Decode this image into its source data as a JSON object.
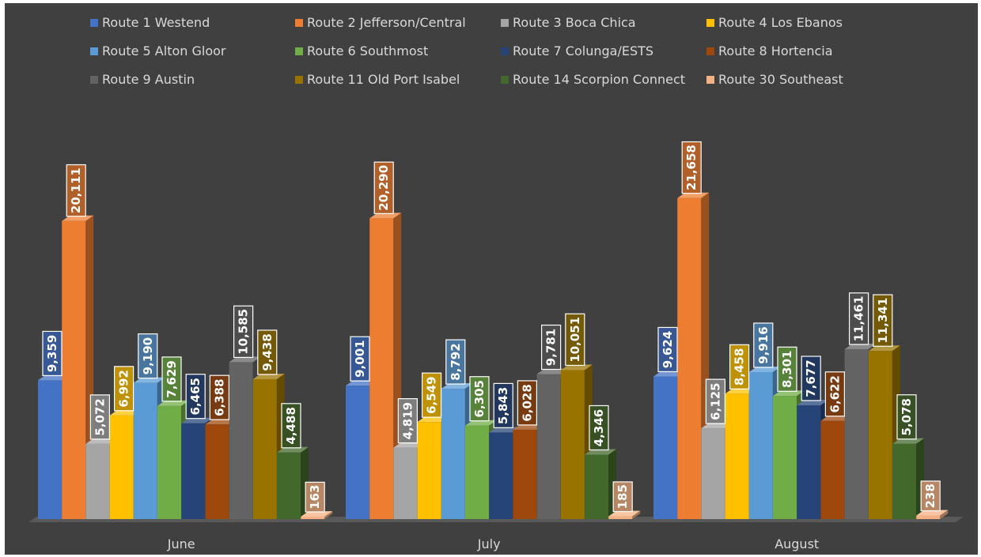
{
  "chart_data": {
    "type": "bar",
    "title": "",
    "xlabel": "",
    "ylabel": "",
    "categories": [
      "June",
      "July",
      "August"
    ],
    "legend_position": "top",
    "grid": false,
    "ylim": [
      0,
      22000
    ],
    "series": [
      {
        "name": "Route 1 Westend",
        "color": "#4472C4",
        "values": [
          9359,
          9001,
          9624
        ]
      },
      {
        "name": "Route 2 Jefferson/Central",
        "color": "#ED7D31",
        "values": [
          20111,
          20290,
          21658
        ]
      },
      {
        "name": "Route 3 Boca Chica",
        "color": "#A5A5A5",
        "values": [
          5072,
          4819,
          6125
        ]
      },
      {
        "name": "Route 4 Los Ebanos",
        "color": "#FFC000",
        "values": [
          6992,
          6549,
          8458
        ]
      },
      {
        "name": "Route 5 Alton Gloor",
        "color": "#5B9BD5",
        "values": [
          9190,
          8792,
          9916
        ]
      },
      {
        "name": "Route 6 Southmost",
        "color": "#70AD47",
        "values": [
          7629,
          6305,
          8301
        ]
      },
      {
        "name": "Route 7 Colunga/ESTS",
        "color": "#264478",
        "values": [
          6465,
          5843,
          7677
        ]
      },
      {
        "name": "Route 8 Hortencia",
        "color": "#9E480E",
        "values": [
          6388,
          6028,
          6622
        ]
      },
      {
        "name": "Route 9 Austin",
        "color": "#636363",
        "values": [
          10585,
          9781,
          11461
        ]
      },
      {
        "name": "Route 11 Old Port Isabel",
        "color": "#997300",
        "values": [
          9438,
          10051,
          11341
        ]
      },
      {
        "name": "Route 14 Scorpion Connect",
        "color": "#43682B",
        "values": [
          4488,
          4346,
          5078
        ]
      },
      {
        "name": "Route 30 Southeast",
        "color": "#F4B183",
        "values": [
          163,
          185,
          238
        ]
      }
    ],
    "data_labels": [
      [
        "9,359",
        "9,001",
        "9,624"
      ],
      [
        "20,111",
        "20,290",
        "21,658"
      ],
      [
        "5,072",
        "4,819",
        "6,125"
      ],
      [
        "6,992",
        "6,549",
        "8,458"
      ],
      [
        "9,190",
        "8,792",
        "9,916"
      ],
      [
        "7,629",
        "6,305",
        "8,301"
      ],
      [
        "6,465",
        "5,843",
        "7,677"
      ],
      [
        "6,388",
        "6,028",
        "6,622"
      ],
      [
        "10,585",
        "9,781",
        "11,461"
      ],
      [
        "9,438",
        "10,051",
        "11,341"
      ],
      [
        "4,488",
        "4,346",
        "5,078"
      ],
      [
        "163",
        "185",
        "238"
      ]
    ]
  }
}
